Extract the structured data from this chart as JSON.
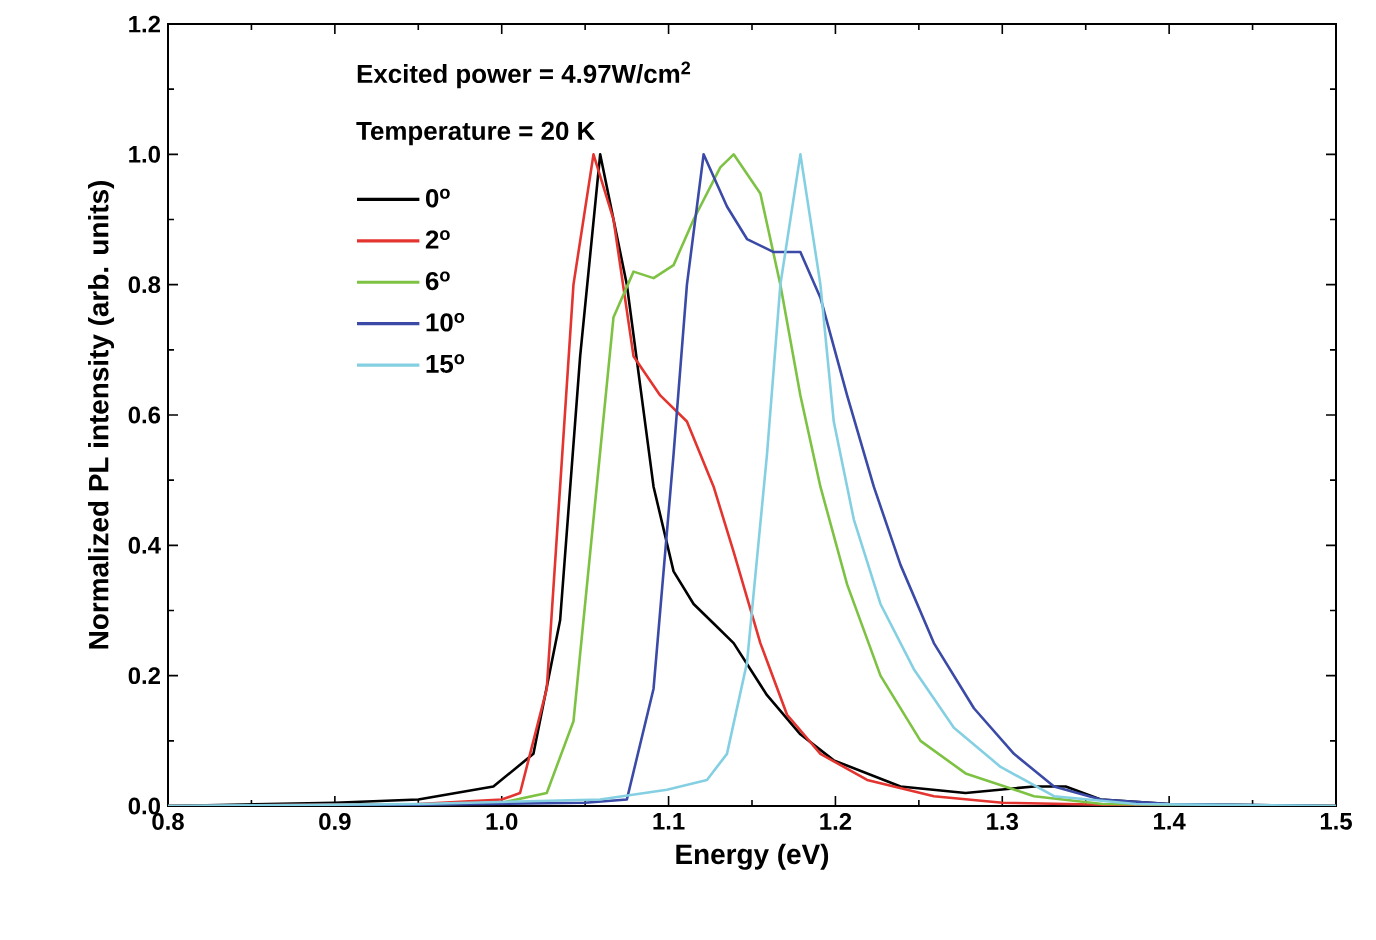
{
  "chart_data": {
    "type": "line",
    "xlabel": "Energy (eV)",
    "ylabel": "Normalized PL intensity (arb. units)",
    "annotations": [
      "Excited power = 4.97W/cm$^{2}$",
      "Temperature = 20 K"
    ],
    "xlim": [
      0.8,
      1.5
    ],
    "ylim": [
      0.0,
      1.2
    ],
    "xticks": [
      0.8,
      0.9,
      {
        "value": 1.0,
        "label": "1.0"
      },
      1.1,
      1.2,
      1.3,
      1.4,
      1.5
    ],
    "yticks": [
      {
        "value": 0.0,
        "label": "0.0"
      },
      0.2,
      0.4,
      0.6,
      0.8,
      {
        "value": 1.0,
        "label": "1.0"
      },
      1.2
    ],
    "grid": false,
    "legend": "top left",
    "marker": "none",
    "line_style": "solid",
    "series": [
      {
        "name": "0$^{o}$",
        "color": "#000000",
        "x": [
          0.8,
          0.9,
          0.95,
          0.995,
          1.019,
          1.035,
          1.047,
          1.059,
          1.075,
          1.091,
          1.103,
          1.115,
          1.127,
          1.139,
          1.159,
          1.179,
          1.199,
          1.239,
          1.278,
          1.319,
          1.338,
          1.359,
          1.4,
          1.5
        ],
        "values": [
          0.0,
          0.005,
          0.01,
          0.03,
          0.08,
          0.285,
          0.69,
          1.0,
          0.8,
          0.49,
          0.36,
          0.31,
          0.28,
          0.25,
          0.17,
          0.11,
          0.07,
          0.03,
          0.02,
          0.03,
          0.03,
          0.01,
          0.003,
          0.0
        ]
      },
      {
        "name": "2$^{o}$",
        "color": "#e3342f",
        "x": [
          0.8,
          0.95,
          1.0,
          1.011,
          1.027,
          1.035,
          1.043,
          1.055,
          1.067,
          1.079,
          1.095,
          1.111,
          1.127,
          1.139,
          1.155,
          1.171,
          1.191,
          1.219,
          1.259,
          1.3,
          1.4,
          1.5
        ],
        "values": [
          0.0,
          0.003,
          0.01,
          0.02,
          0.18,
          0.49,
          0.8,
          1.0,
          0.9,
          0.69,
          0.63,
          0.59,
          0.49,
          0.39,
          0.25,
          0.14,
          0.08,
          0.04,
          0.015,
          0.005,
          0.0,
          0.0
        ]
      },
      {
        "name": "6$^{o}$",
        "color": "#7dc243",
        "x": [
          0.8,
          0.95,
          1.0,
          1.027,
          1.043,
          1.055,
          1.067,
          1.079,
          1.091,
          1.103,
          1.115,
          1.131,
          1.139,
          1.155,
          1.167,
          1.179,
          1.191,
          1.207,
          1.227,
          1.251,
          1.278,
          1.319,
          1.36,
          1.5
        ],
        "values": [
          0.0,
          0.002,
          0.005,
          0.02,
          0.13,
          0.44,
          0.75,
          0.82,
          0.81,
          0.83,
          0.9,
          0.98,
          1.0,
          0.94,
          0.8,
          0.63,
          0.49,
          0.34,
          0.2,
          0.1,
          0.05,
          0.015,
          0.003,
          0.0
        ]
      },
      {
        "name": "10$^{o}$",
        "color": "#3a4aa6",
        "x": [
          0.8,
          0.95,
          1.05,
          1.075,
          1.091,
          1.103,
          1.111,
          1.121,
          1.135,
          1.147,
          1.163,
          1.179,
          1.191,
          1.207,
          1.223,
          1.239,
          1.259,
          1.283,
          1.307,
          1.331,
          1.359,
          1.4,
          1.5
        ],
        "values": [
          0.0,
          0.002,
          0.005,
          0.01,
          0.18,
          0.54,
          0.8,
          1.0,
          0.92,
          0.87,
          0.85,
          0.85,
          0.78,
          0.63,
          0.49,
          0.37,
          0.25,
          0.15,
          0.08,
          0.03,
          0.01,
          0.003,
          0.0
        ]
      },
      {
        "name": "15$^{o}$",
        "color": "#84d0e2",
        "x": [
          0.8,
          0.95,
          1.059,
          1.099,
          1.123,
          1.135,
          1.147,
          1.159,
          1.167,
          1.179,
          1.191,
          1.199,
          1.211,
          1.227,
          1.247,
          1.271,
          1.299,
          1.331,
          1.38,
          1.5
        ],
        "values": [
          0.0,
          0.003,
          0.01,
          0.025,
          0.04,
          0.08,
          0.22,
          0.54,
          0.8,
          1.0,
          0.8,
          0.59,
          0.44,
          0.31,
          0.21,
          0.12,
          0.06,
          0.015,
          0.003,
          0.0
        ]
      }
    ]
  }
}
